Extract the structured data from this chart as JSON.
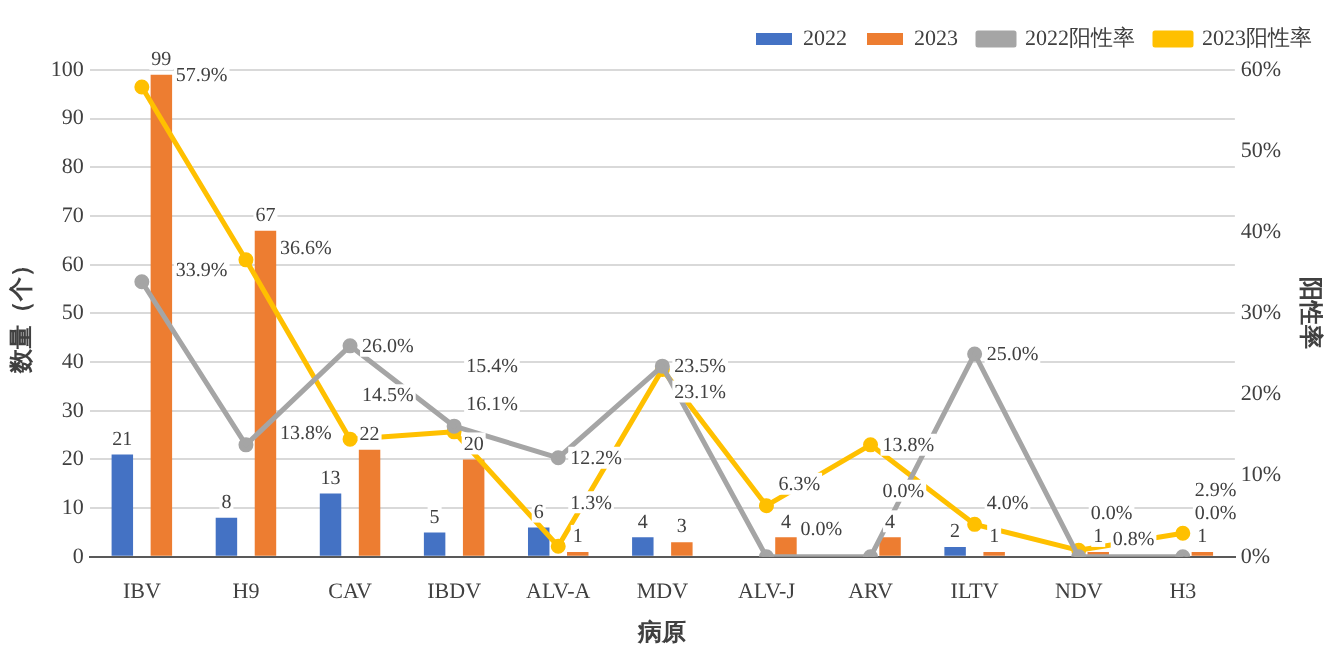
{
  "chart_data": {
    "type": "bar",
    "xlabel": "病原",
    "ylabel": "数量（个）",
    "y2label": "阳性率",
    "categories": [
      "IBV",
      "H9",
      "CAV",
      "IBDV",
      "ALV-A",
      "MDV",
      "ALV-J",
      "ARV",
      "ILTV",
      "NDV",
      "H3"
    ],
    "series": [
      {
        "name": "2022",
        "color": "#4472c4",
        "values": [
          21,
          8,
          13,
          5,
          6,
          4,
          0,
          0,
          2,
          0,
          0
        ],
        "value_labels": [
          "21",
          "8",
          "13",
          "5",
          "6",
          "4",
          null,
          null,
          "2",
          null,
          null
        ]
      },
      {
        "name": "2023",
        "color": "#ed7d31",
        "values": [
          99,
          67,
          22,
          20,
          1,
          3,
          4,
          4,
          1,
          1,
          1
        ],
        "value_labels": [
          "99",
          "67",
          "22",
          "20",
          "1",
          "3",
          "4",
          "4",
          "1",
          "1",
          "1"
        ]
      },
      {
        "name": "2022阳性率",
        "type": "line",
        "axis": "y2",
        "color": "#a5a5a5",
        "values": [
          33.9,
          13.8,
          26.0,
          16.1,
          12.2,
          23.5,
          0.0,
          0.0,
          25.0,
          0.0,
          0.0
        ],
        "value_labels": [
          "33.9%",
          "13.8%",
          "26.0%",
          "16.1%",
          "12.2%",
          "23.5%",
          "0.0%",
          "0.0%",
          "25.0%",
          "0.0%",
          "0.0%"
        ]
      },
      {
        "name": "2023阳性率",
        "type": "line",
        "axis": "y2",
        "color": "#ffc000",
        "values": [
          57.9,
          36.6,
          14.5,
          15.4,
          1.3,
          23.1,
          6.3,
          13.8,
          4.0,
          0.8,
          2.9
        ],
        "value_labels": [
          "57.9%",
          "36.6%",
          "14.5%",
          "15.4%",
          "1.3%",
          "23.1%",
          "6.3%",
          "13.8%",
          "4.0%",
          "0.8%",
          "2.9%"
        ]
      }
    ],
    "ylim": [
      0,
      100
    ],
    "yticks": [
      0,
      10,
      20,
      30,
      40,
      50,
      60,
      70,
      80,
      90,
      100
    ],
    "y2lim": [
      0,
      60
    ],
    "y2ticks": [
      {
        "value": 0,
        "label": "0%"
      },
      {
        "value": 10,
        "label": "10%"
      },
      {
        "value": 20,
        "label": "20%"
      },
      {
        "value": 30,
        "label": "30%"
      },
      {
        "value": 40,
        "label": "40%"
      },
      {
        "value": 50,
        "label": "50%"
      },
      {
        "value": 60,
        "label": "60%"
      }
    ],
    "grid": "y",
    "legend": "top right",
    "marker": "circle",
    "line_style": "solid"
  }
}
